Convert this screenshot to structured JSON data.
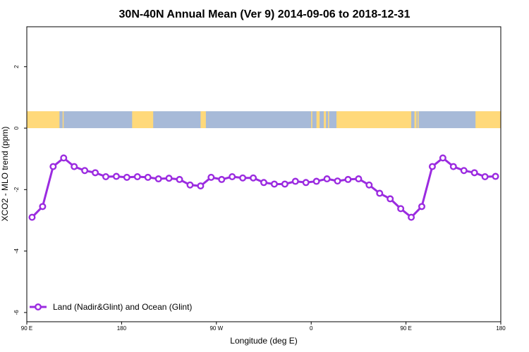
{
  "chart_data": {
    "type": "line",
    "title": "30N-40N Annual Mean (Ver 9)   2014-09-06 to 2018-12-31",
    "xlabel": "Longitude (deg E)",
    "ylabel": "XCO2 - MLO trend (ppm)",
    "xlim": [
      90,
      540
    ],
    "ylim": [
      -6.3,
      3.3
    ],
    "x_ticks": [
      {
        "value": 90,
        "label": "90 E"
      },
      {
        "value": 180,
        "label": "180"
      },
      {
        "value": 270,
        "label": "90 W"
      },
      {
        "value": 360,
        "label": "0"
      },
      {
        "value": 450,
        "label": "90 E"
      },
      {
        "value": 540,
        "label": "180"
      }
    ],
    "y_ticks": [
      {
        "value": 2,
        "label": "2"
      },
      {
        "value": 0,
        "label": "0"
      },
      {
        "value": -2,
        "label": "-2"
      },
      {
        "value": -4,
        "label": "-4"
      },
      {
        "value": -6,
        "label": "-6"
      }
    ],
    "legend": {
      "position": "bottom-left"
    },
    "colors": {
      "series": "#9b2be0",
      "land": "#ffd97a",
      "ocean": "#a7bad8"
    },
    "series": [
      {
        "name": "Land (Nadir&Glint) and Ocean (Glint)",
        "x": [
          95,
          105,
          115,
          125,
          135,
          145,
          155,
          165,
          175,
          185,
          195,
          205,
          215,
          225,
          235,
          245,
          255,
          265,
          275,
          285,
          295,
          305,
          315,
          325,
          335,
          345,
          355,
          365,
          375,
          385,
          395,
          405,
          415,
          425,
          435,
          445,
          455,
          465,
          475,
          485,
          495,
          505,
          515,
          525,
          535
        ],
        "y": [
          -2.9,
          -2.55,
          -1.25,
          -0.97,
          -1.25,
          -1.38,
          -1.45,
          -1.58,
          -1.57,
          -1.6,
          -1.58,
          -1.6,
          -1.65,
          -1.63,
          -1.67,
          -1.85,
          -1.88,
          -1.6,
          -1.67,
          -1.58,
          -1.62,
          -1.62,
          -1.77,
          -1.82,
          -1.82,
          -1.73,
          -1.77,
          -1.73,
          -1.65,
          -1.72,
          -1.67,
          -1.65,
          -1.85,
          -2.12,
          -2.3,
          -2.62,
          -2.9,
          -2.55,
          -1.25,
          -0.97,
          -1.25,
          -1.38,
          -1.45,
          -1.58,
          -1.57
        ]
      }
    ],
    "land_ocean_strip": {
      "y_range": [
        0,
        0.55
      ],
      "land_segments": [
        [
          90,
          121
        ],
        [
          124,
          125
        ],
        [
          190,
          210
        ],
        [
          255,
          260
        ],
        [
          360,
          361
        ],
        [
          365,
          368
        ],
        [
          372,
          374
        ],
        [
          376,
          377
        ],
        [
          384,
          455
        ],
        [
          458,
          460
        ],
        [
          461,
          462
        ],
        [
          516,
          541
        ]
      ]
    }
  }
}
